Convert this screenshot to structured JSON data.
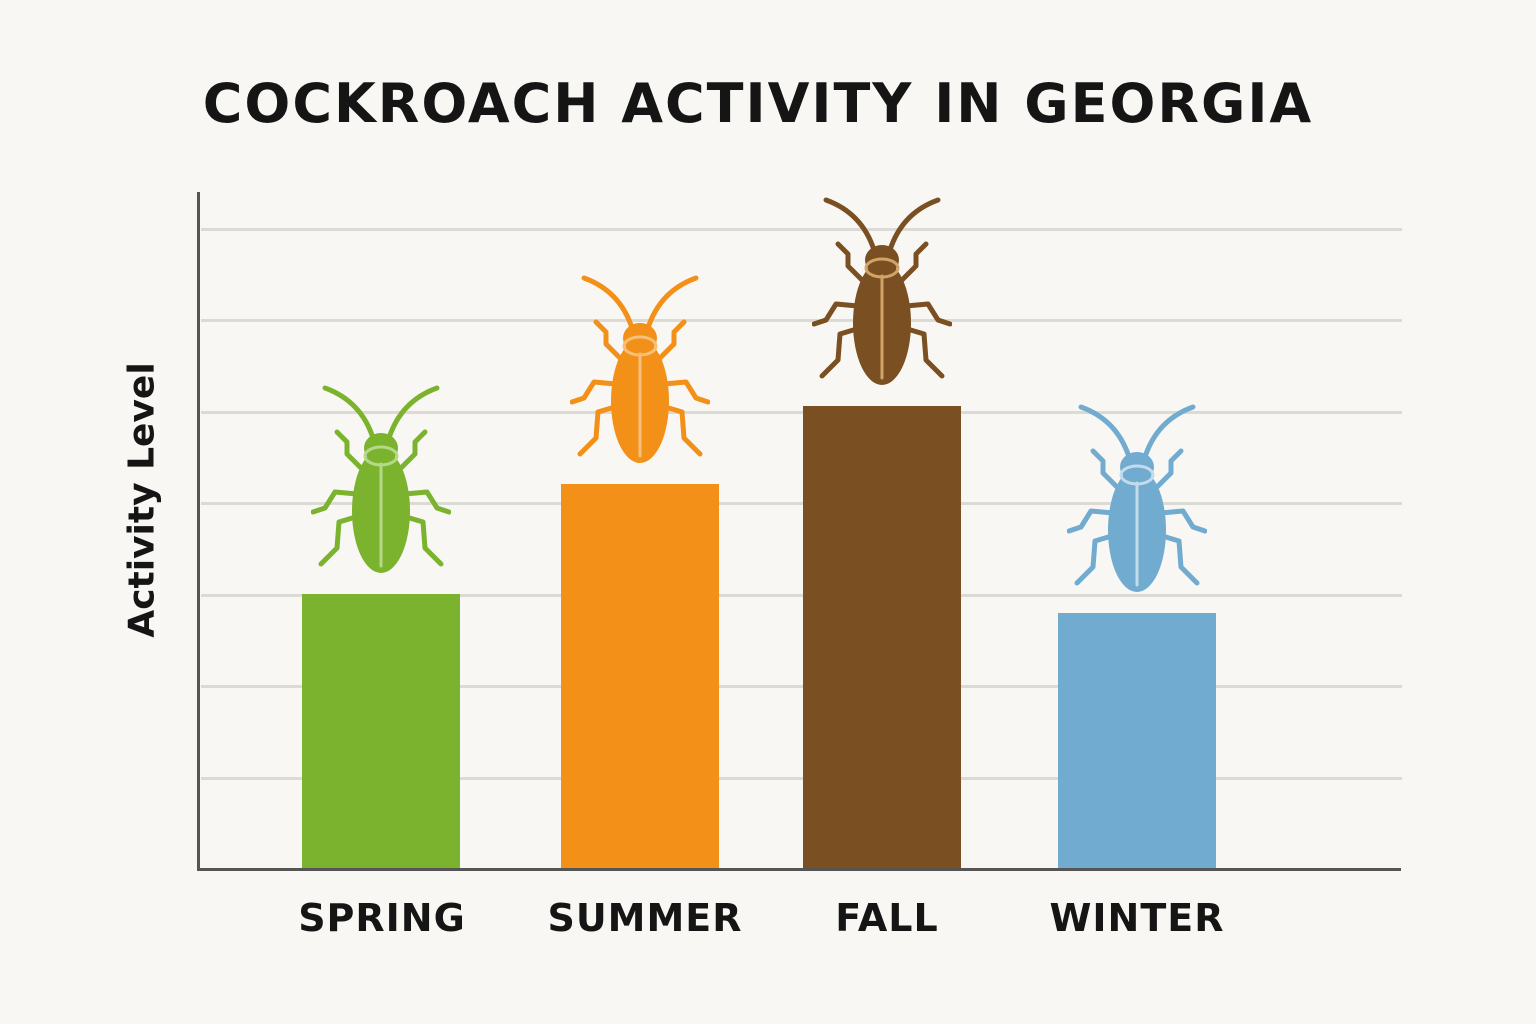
{
  "chart_data": {
    "type": "bar",
    "title": "COCKROACH ACTIVITY IN GEORGIA",
    "xlabel": "",
    "ylabel": "Activity Level",
    "categories": [
      "SPRING",
      "SUMMER",
      "FALL",
      "WINTER"
    ],
    "values": [
      3.0,
      4.2,
      5.05,
      2.8
    ],
    "colors": [
      "#7cb32e",
      "#f29018",
      "#7a5022",
      "#72abd0"
    ],
    "ylim": [
      0,
      7
    ],
    "grid": true,
    "ytick_labels_shown": false,
    "legend": null,
    "annotations": [
      "cockroach icon above each bar, colored to match bar"
    ]
  },
  "labels": {
    "title": "COCKROACH ACTIVITY IN GEORGIA",
    "ylabel": "Activity Level",
    "categories": [
      "SPRING",
      "SUMMER",
      "FALL",
      "WINTER"
    ]
  },
  "icons": [
    "cockroach-icon"
  ]
}
